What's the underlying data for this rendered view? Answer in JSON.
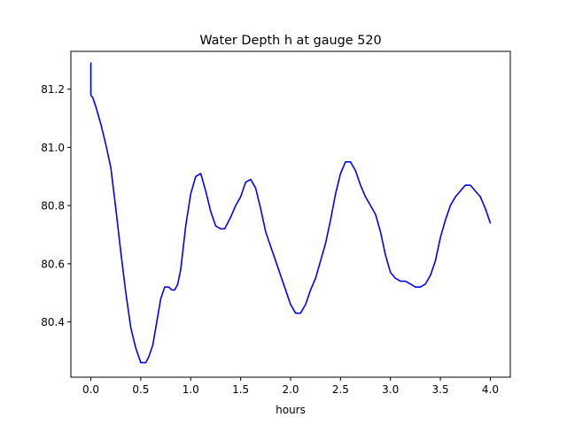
{
  "chart_data": {
    "type": "line",
    "title": "Water Depth h at gauge 520",
    "xlabel": "hours",
    "ylabel": "",
    "xlim": [
      -0.2,
      4.2
    ],
    "ylim": [
      80.21,
      81.33
    ],
    "xticks": [
      {
        "value": 0.0,
        "label": "0.0"
      },
      {
        "value": 0.5,
        "label": "0.5"
      },
      {
        "value": 1.0,
        "label": "1.0"
      },
      {
        "value": 1.5,
        "label": "1.5"
      },
      {
        "value": 2.0,
        "label": "2.0"
      },
      {
        "value": 2.5,
        "label": "2.5"
      },
      {
        "value": 3.0,
        "label": "3.0"
      },
      {
        "value": 3.5,
        "label": "3.5"
      },
      {
        "value": 4.0,
        "label": "4.0"
      }
    ],
    "yticks": [
      {
        "value": 80.4,
        "label": "80.4"
      },
      {
        "value": 80.6,
        "label": "80.6"
      },
      {
        "value": 80.8,
        "label": "80.8"
      },
      {
        "value": 81.0,
        "label": "81.0"
      },
      {
        "value": 81.2,
        "label": "81.2"
      }
    ],
    "grid": false,
    "series": [
      {
        "color": "#0000ff",
        "x": [
          0.0,
          0.0,
          0.02,
          0.05,
          0.1,
          0.15,
          0.2,
          0.25,
          0.3,
          0.35,
          0.4,
          0.45,
          0.5,
          0.55,
          0.58,
          0.62,
          0.66,
          0.7,
          0.74,
          0.78,
          0.81,
          0.84,
          0.87,
          0.9,
          0.95,
          1.0,
          1.05,
          1.1,
          1.15,
          1.2,
          1.25,
          1.3,
          1.34,
          1.4,
          1.45,
          1.5,
          1.55,
          1.6,
          1.65,
          1.7,
          1.75,
          1.8,
          1.85,
          1.9,
          1.95,
          2.0,
          2.05,
          2.1,
          2.15,
          2.2,
          2.25,
          2.3,
          2.35,
          2.4,
          2.45,
          2.5,
          2.55,
          2.6,
          2.65,
          2.7,
          2.75,
          2.8,
          2.85,
          2.9,
          2.95,
          3.0,
          3.05,
          3.1,
          3.15,
          3.2,
          3.25,
          3.3,
          3.35,
          3.4,
          3.45,
          3.5,
          3.55,
          3.6,
          3.65,
          3.7,
          3.75,
          3.8,
          3.85,
          3.9,
          3.95,
          4.0
        ],
        "y": [
          81.29,
          81.18,
          81.17,
          81.14,
          81.08,
          81.01,
          80.93,
          80.79,
          80.64,
          80.5,
          80.38,
          80.31,
          80.26,
          80.26,
          80.28,
          80.32,
          80.4,
          80.48,
          80.52,
          80.52,
          80.51,
          80.51,
          80.53,
          80.58,
          80.73,
          80.84,
          80.9,
          80.91,
          80.85,
          80.78,
          80.73,
          80.72,
          80.72,
          80.76,
          80.8,
          80.83,
          80.88,
          80.89,
          80.86,
          80.79,
          80.71,
          80.66,
          80.61,
          80.56,
          80.51,
          80.46,
          80.43,
          80.43,
          80.46,
          80.51,
          80.55,
          80.61,
          80.67,
          80.75,
          80.84,
          80.91,
          80.95,
          80.95,
          80.92,
          80.87,
          80.83,
          80.8,
          80.77,
          80.71,
          80.63,
          80.57,
          80.55,
          80.54,
          80.54,
          80.53,
          80.52,
          80.52,
          80.53,
          80.56,
          80.61,
          80.69,
          80.75,
          80.8,
          80.83,
          80.85,
          80.87,
          80.87,
          80.85,
          80.83,
          80.79,
          80.74
        ]
      }
    ]
  }
}
